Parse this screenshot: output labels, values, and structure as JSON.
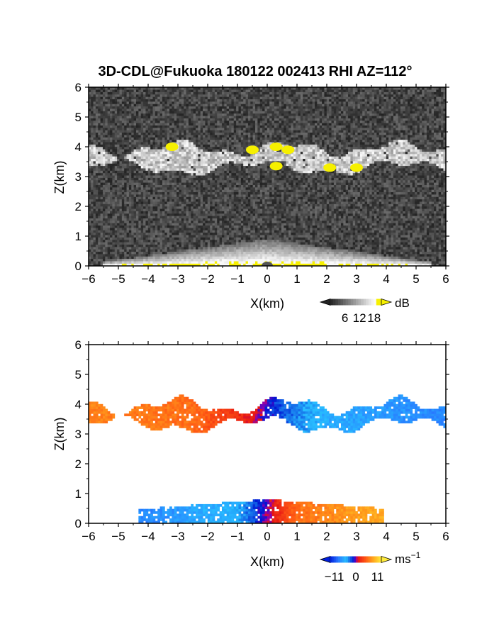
{
  "title": "3D-CDL@Fukuoka 180122 002413 RHI AZ=112°",
  "chart_data": [
    {
      "type": "heatmap",
      "panel": "reflectivity",
      "xlabel": "X(km)",
      "ylabel": "Z(km)",
      "xlim": [
        -6,
        6
      ],
      "ylim": [
        0,
        6
      ],
      "xticks": [
        "-6",
        "-5",
        "-4",
        "-3",
        "-2",
        "-1",
        "0",
        "1",
        "2",
        "3",
        "4",
        "5",
        "6"
      ],
      "yticks": [
        "0",
        "1",
        "2",
        "3",
        "4",
        "5",
        "6"
      ],
      "colorbar": {
        "unit": "dB",
        "ticks": [
          "6",
          "12",
          "18"
        ],
        "range": [
          0,
          21
        ]
      },
      "features": {
        "cloud_layer": {
          "x_range": [
            -6,
            6
          ],
          "z_bottom_km": [
            3.0,
            3.5
          ],
          "z_top_km": [
            3.6,
            4.4
          ],
          "value_db": [
            10,
            18
          ]
        },
        "strong_echo_patches": [
          {
            "x_km": -3.2,
            "z_km": 4.0,
            "value_db": 20
          },
          {
            "x_km": -0.5,
            "z_km": 3.9,
            "value_db": 20
          },
          {
            "x_km": 0.3,
            "z_km": 4.0,
            "value_db": 20
          },
          {
            "x_km": 0.7,
            "z_km": 3.9,
            "value_db": 20
          },
          {
            "x_km": 0.3,
            "z_km": 3.35,
            "value_db": 20
          },
          {
            "x_km": 2.1,
            "z_km": 3.3,
            "value_db": 20
          },
          {
            "x_km": 3.0,
            "z_km": 3.3,
            "value_db": 20
          }
        ],
        "ground_return": {
          "x_range": [
            -5.5,
            5.5
          ],
          "z_top_km": 0.9,
          "value_db": 14
        }
      },
      "background": "noise"
    },
    {
      "type": "heatmap",
      "panel": "doppler_velocity",
      "xlabel": "X(km)",
      "ylabel": "Z(km)",
      "xlim": [
        -6,
        6
      ],
      "ylim": [
        0,
        6
      ],
      "xticks": [
        "-6",
        "-5",
        "-4",
        "-3",
        "-2",
        "-1",
        "0",
        "1",
        "2",
        "3",
        "4",
        "5",
        "6"
      ],
      "yticks": [
        "0",
        "1",
        "2",
        "3",
        "4",
        "5",
        "6"
      ],
      "colorbar": {
        "unit": "ms",
        "unit_exponent": "−1",
        "ticks": [
          "−11",
          "0",
          "11"
        ],
        "range": [
          -13,
          13
        ]
      },
      "features": {
        "cloud_layer": {
          "x_range": [
            -6,
            6
          ],
          "z_bottom_km": [
            3.0,
            3.5
          ],
          "z_top_km": [
            3.6,
            4.5
          ],
          "velocity_at_x": [
            [
              -5.5,
              7
            ],
            [
              -2.5,
              6
            ],
            [
              -0.4,
              1
            ],
            [
              0.3,
              -2
            ],
            [
              2.0,
              -6
            ],
            [
              5.5,
              -8
            ]
          ]
        },
        "low_layer": {
          "x_range": [
            -4.3,
            3.9
          ],
          "z_range_km": [
            0,
            0.8
          ],
          "velocity_at_x": [
            [
              -4.0,
              -8
            ],
            [
              -1.0,
              -5
            ],
            [
              0.0,
              0
            ],
            [
              1.0,
              6
            ],
            [
              3.5,
              9
            ]
          ]
        }
      },
      "background": "white"
    }
  ]
}
